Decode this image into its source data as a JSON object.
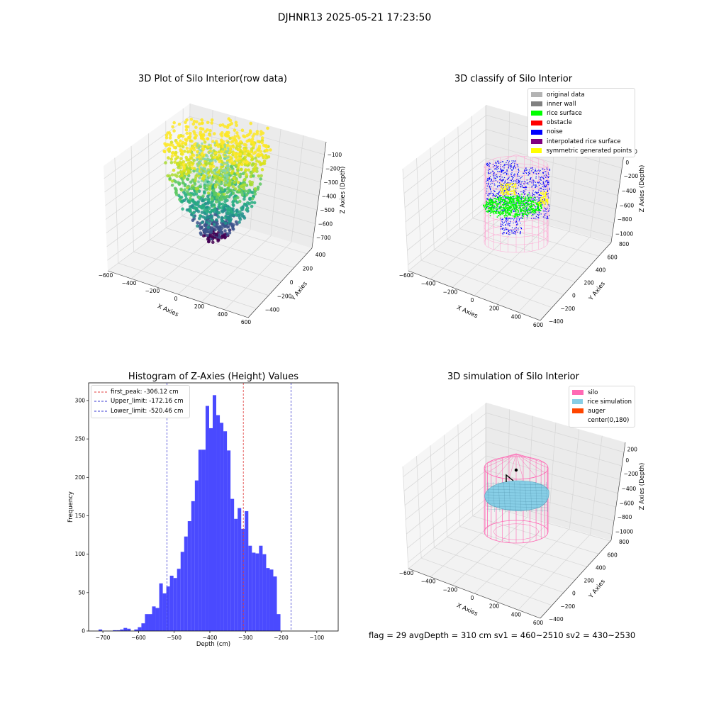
{
  "figure_title": "DJHNR13 2025-05-21 17:23:50",
  "footer_text": "flag = 29  avgDepth = 310 cm  sv1 = 460~2510  sv2 = 430~2530",
  "chart_data": [
    {
      "type": "scatter",
      "title": "3D Plot of Silo Interior(row data)",
      "xlabel": "X Axies",
      "ylabel": "Y Axies",
      "zlabel": "Z Axies (Depth)",
      "x_ticks": [
        -600,
        -400,
        -200,
        0,
        200,
        400,
        600
      ],
      "y_ticks": [
        -400,
        -200,
        0,
        200,
        400
      ],
      "z_ticks": [
        -100,
        -200,
        -300,
        -400,
        -500,
        -600,
        -700
      ],
      "colormap": "viridis",
      "grid": true
    },
    {
      "type": "scatter",
      "title": "3D classify of Silo Interior",
      "xlabel": "X Axies",
      "ylabel": "Y Axies",
      "zlabel": "Z Axies (Depth)",
      "x_ticks": [
        -600,
        -400,
        -200,
        0,
        200,
        400,
        600
      ],
      "y_ticks": [
        -400,
        -200,
        0,
        200,
        400,
        600,
        800
      ],
      "z_ticks": [
        200,
        0,
        -200,
        -400,
        -600,
        -800,
        -1000
      ],
      "legend_position": "top-right",
      "legend": [
        {
          "label": "original data",
          "color": "#b3b3b3"
        },
        {
          "label": "inner wall",
          "color": "#808080"
        },
        {
          "label": "rice surface",
          "color": "#00ff00"
        },
        {
          "label": "obstacle",
          "color": "#ff0000"
        },
        {
          "label": "noise",
          "color": "#0000ff"
        },
        {
          "label": "interpolated rice surface",
          "color": "#800080"
        },
        {
          "label": "symmetric generated points",
          "color": "#ffff00"
        }
      ],
      "grid": true
    },
    {
      "type": "bar",
      "title": "Histogram of Z-Axies (Height) Values",
      "xlabel": "Depth (cm)",
      "ylabel": "Frequency",
      "xlim": [
        -740,
        -40
      ],
      "ylim": [
        0,
        323
      ],
      "x_ticks": [
        -700,
        -600,
        -500,
        -400,
        -300,
        -200,
        -100
      ],
      "y_ticks": [
        0,
        50,
        100,
        150,
        200,
        250,
        300
      ],
      "bin_start": -712,
      "bin_width": 10,
      "values": [
        2,
        0,
        0,
        0,
        1,
        1,
        2,
        4,
        3,
        0,
        2,
        5,
        10,
        22,
        22,
        32,
        30,
        62,
        49,
        58,
        72,
        69,
        81,
        103,
        123,
        143,
        169,
        196,
        236,
        236,
        293,
        264,
        307,
        281,
        271,
        260,
        235,
        172,
        146,
        160,
        133,
        156,
        111,
        102,
        101,
        111,
        100,
        82,
        80,
        71,
        22
      ],
      "bar_color": "#4a4aff",
      "vlines": [
        {
          "label": "first_peak: -306.12 cm",
          "x": -306.12,
          "color": "#e03c3c"
        },
        {
          "label": "Upper_limit: -172.16 cm",
          "x": -172.16,
          "color": "#3a3ad0"
        },
        {
          "label": "Lower_limit: -520.46 cm",
          "x": -520.46,
          "color": "#3a3ad0"
        }
      ],
      "legend_position": "top-left"
    },
    {
      "type": "scatter",
      "title": "3D simulation of Silo Interior",
      "xlabel": "X Axies",
      "ylabel": "Y Axies",
      "zlabel": "Z Axies (Depth)",
      "x_ticks": [
        -600,
        -400,
        -200,
        0,
        200,
        400,
        600
      ],
      "y_ticks": [
        -400,
        -200,
        0,
        200,
        400,
        600,
        800
      ],
      "z_ticks": [
        200,
        0,
        -200,
        -400,
        -600,
        -800,
        -1000
      ],
      "legend_position": "top-right",
      "legend": [
        {
          "label": "silo",
          "color": "#ff69b4"
        },
        {
          "label": "rice simulation",
          "color": "#87cee6"
        },
        {
          "label": "auger",
          "color": "#ff4500"
        },
        {
          "label": "center(0,180)",
          "color": "#ffffff"
        }
      ],
      "grid": true
    }
  ]
}
